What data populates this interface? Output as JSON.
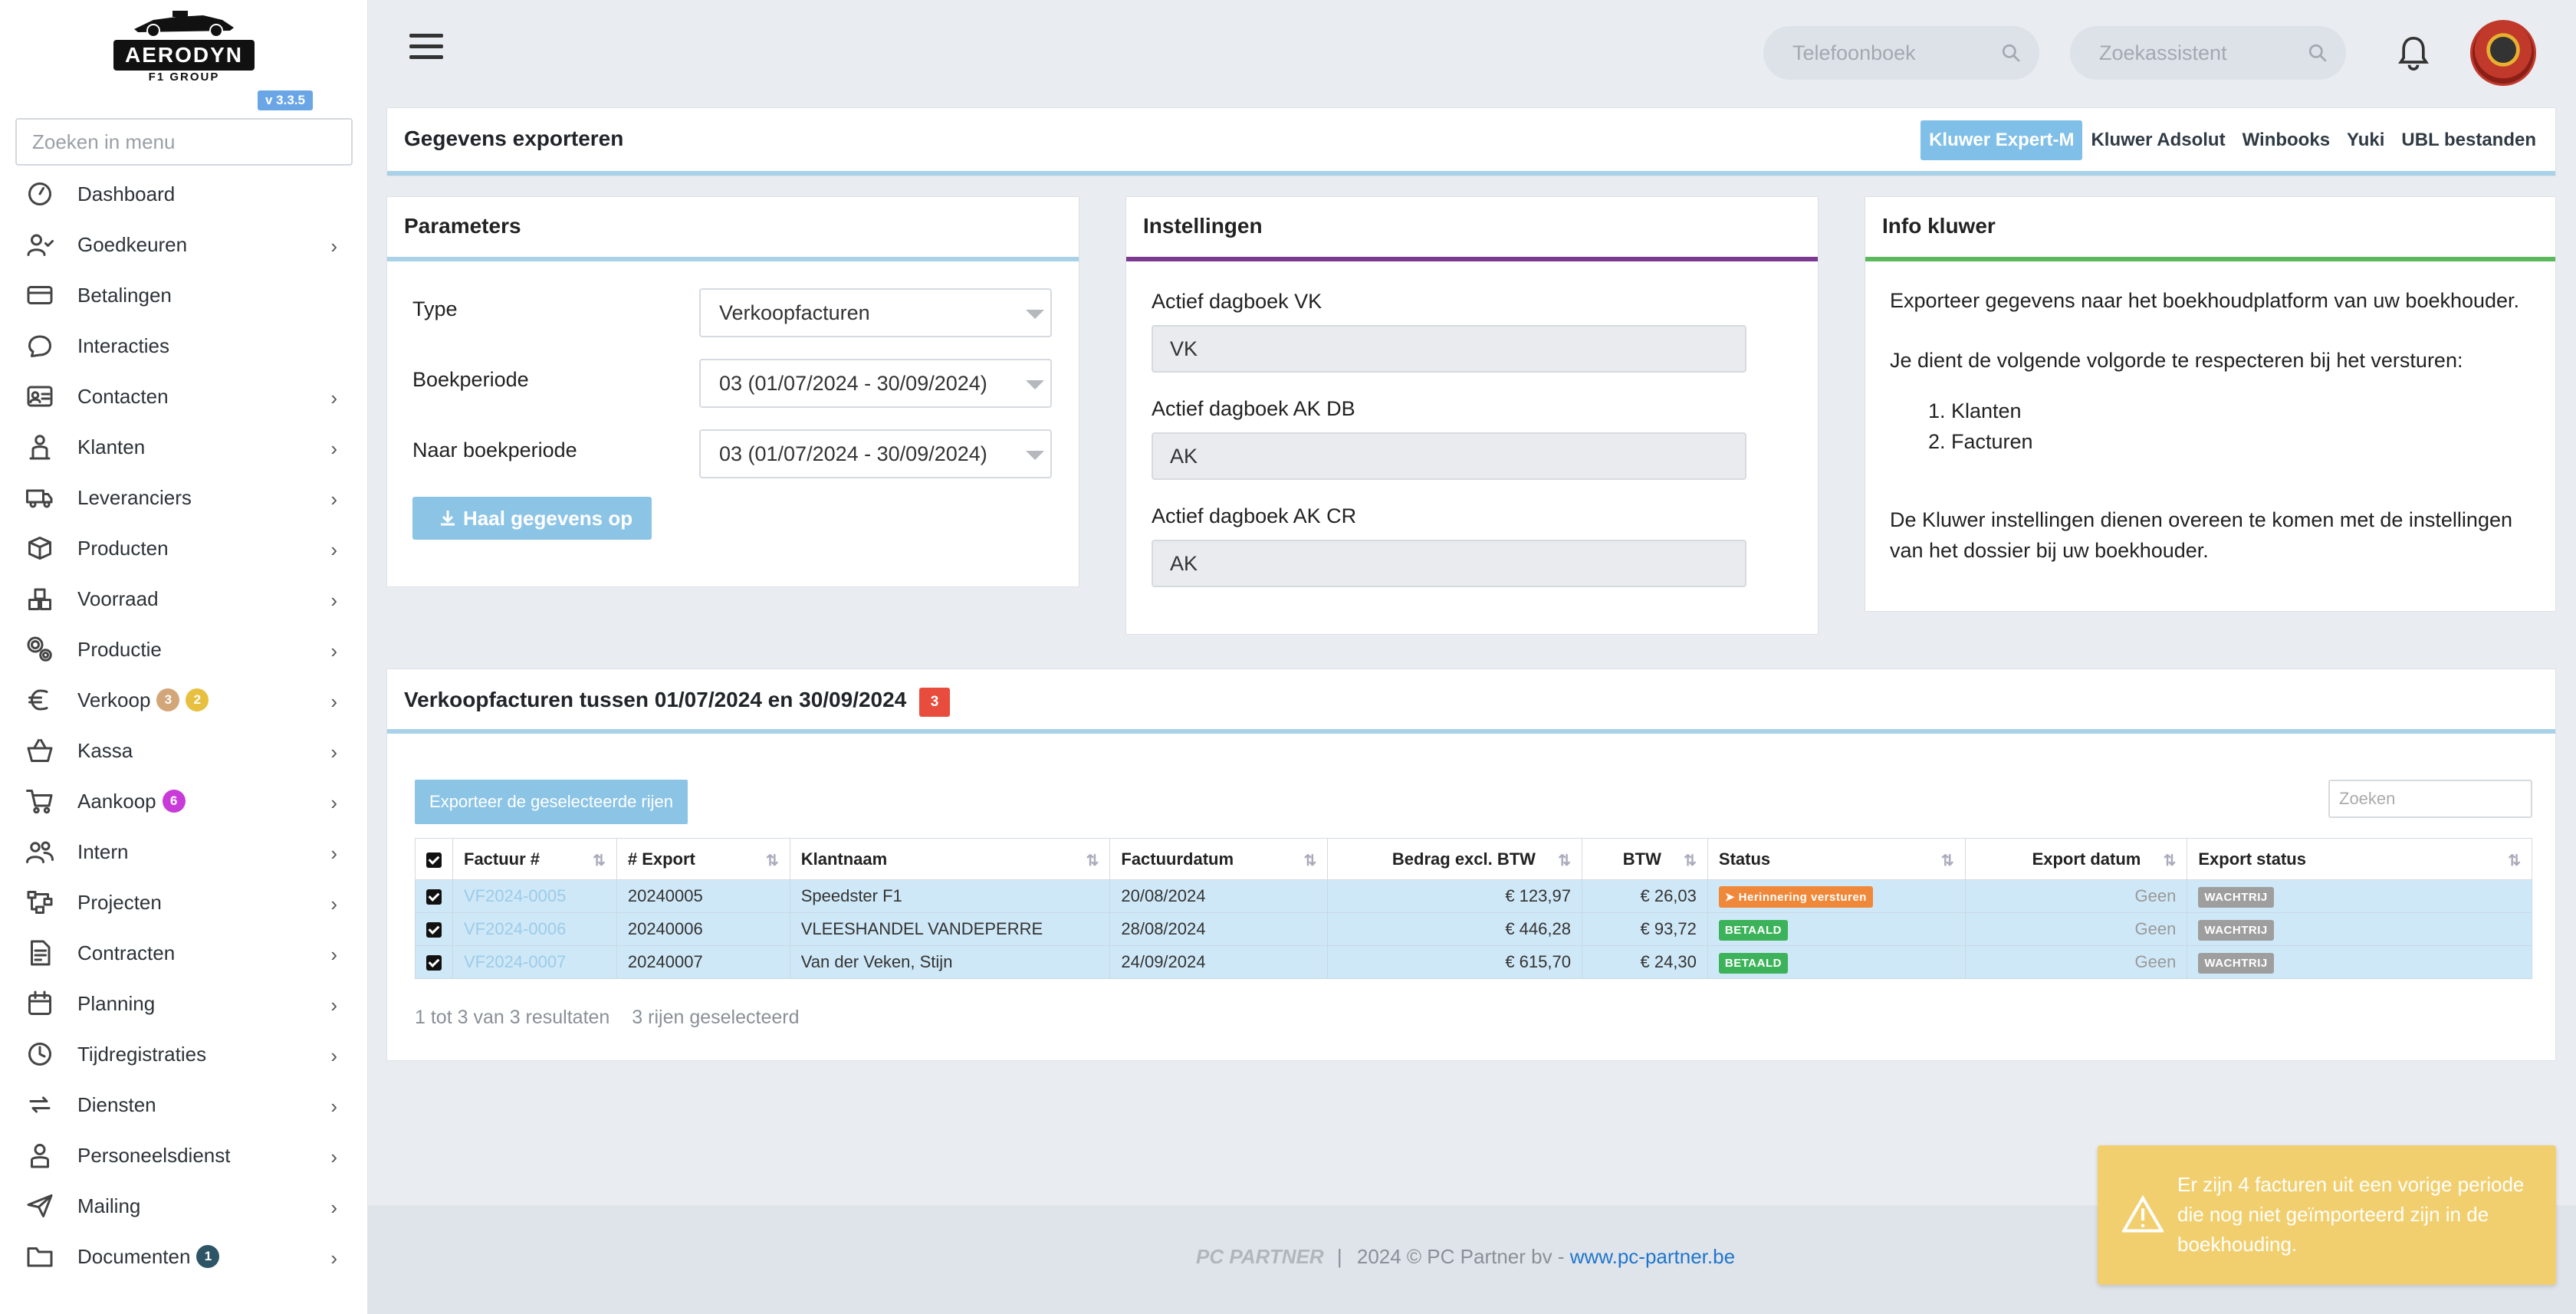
{
  "app": {
    "logo_text": "AERODYN",
    "logo_sub": "F1 GROUP",
    "version": "v 3.3.5"
  },
  "sidebar": {
    "search_placeholder": "Zoeken in menu",
    "items": [
      {
        "label": "Dashboard",
        "icon": "dashboard-icon",
        "chevron": false
      },
      {
        "label": "Goedkeuren",
        "icon": "user-check-icon",
        "chevron": true
      },
      {
        "label": "Betalingen",
        "icon": "credit-card-icon",
        "chevron": false
      },
      {
        "label": "Interacties",
        "icon": "chat-icon",
        "chevron": false
      },
      {
        "label": "Contacten",
        "icon": "contact-card-icon",
        "chevron": true
      },
      {
        "label": "Klanten",
        "icon": "customer-icon",
        "chevron": true
      },
      {
        "label": "Leveranciers",
        "icon": "truck-icon",
        "chevron": true
      },
      {
        "label": "Producten",
        "icon": "box-icon",
        "chevron": true
      },
      {
        "label": "Voorraad",
        "icon": "boxes-icon",
        "chevron": true
      },
      {
        "label": "Productie",
        "icon": "gears-icon",
        "chevron": true
      },
      {
        "label": "Verkoop",
        "icon": "euro-icon",
        "chevron": true,
        "badges": [
          {
            "value": "3",
            "color": "#d2a679"
          },
          {
            "value": "2",
            "color": "#e8c040"
          }
        ]
      },
      {
        "label": "Kassa",
        "icon": "basket-icon",
        "chevron": true
      },
      {
        "label": "Aankoop",
        "icon": "cart-icon",
        "chevron": true,
        "badges": [
          {
            "value": "6",
            "color": "#c93bd8"
          }
        ]
      },
      {
        "label": "Intern",
        "icon": "users-icon",
        "chevron": true
      },
      {
        "label": "Projecten",
        "icon": "project-icon",
        "chevron": true
      },
      {
        "label": "Contracten",
        "icon": "contract-icon",
        "chevron": true
      },
      {
        "label": "Planning",
        "icon": "calendar-icon",
        "chevron": true
      },
      {
        "label": "Tijdregistraties",
        "icon": "clock-icon",
        "chevron": true
      },
      {
        "label": "Diensten",
        "icon": "repeat-icon",
        "chevron": true
      },
      {
        "label": "Personeelsdienst",
        "icon": "person-icon",
        "chevron": true
      },
      {
        "label": "Mailing",
        "icon": "send-icon",
        "chevron": true
      },
      {
        "label": "Documenten",
        "icon": "folder-icon",
        "chevron": true,
        "badges": [
          {
            "value": "1",
            "color": "#2d5566"
          }
        ]
      }
    ]
  },
  "topbar": {
    "phonebook_placeholder": "Telefoonboek",
    "assistant_placeholder": "Zoekassistent"
  },
  "export_header": {
    "title": "Gegevens exporteren",
    "tabs": [
      "Kluwer Expert-M",
      "Kluwer Adsolut",
      "Winbooks",
      "Yuki",
      "UBL bestanden"
    ],
    "active_tab": "Kluwer Expert-M"
  },
  "parameters": {
    "title": "Parameters",
    "type_label": "Type",
    "type_value": "Verkoopfacturen",
    "period_label": "Boekperiode",
    "period_value": "03 (01/07/2024 - 30/09/2024)",
    "to_period_label": "Naar boekperiode",
    "to_period_value": "03 (01/07/2024 - 30/09/2024)",
    "fetch_button": "Haal gegevens op"
  },
  "settings": {
    "title": "Instellingen",
    "vk_label": "Actief dagboek VK",
    "vk_value": "VK",
    "akdb_label": "Actief dagboek AK DB",
    "akdb_value": "AK",
    "akcr_label": "Actief dagboek AK CR",
    "akcr_value": "AK"
  },
  "info": {
    "title": "Info kluwer",
    "p1": "Exporteer gegevens naar het boekhoudplatform van uw boekhouder.",
    "p2": "Je dient de volgende volgorde te respecteren bij het versturen:",
    "list": [
      "Klanten",
      "Facturen"
    ],
    "p3": "De Kluwer instellingen dienen overeen te komen met de instellingen van het dossier bij uw boekhouder."
  },
  "invoices": {
    "title": "Verkoopfacturen tussen 01/07/2024 en 30/09/2024",
    "count": "3",
    "export_button": "Exporteer de geselecteerde rijen",
    "search_placeholder": "Zoeken",
    "columns": [
      "Factuur #",
      "# Export",
      "Klantnaam",
      "Factuurdatum",
      "Bedrag excl. BTW",
      "BTW",
      "Status",
      "Export datum",
      "Export status"
    ],
    "rows": [
      {
        "factuur": "VF2024-0005",
        "export": "20240005",
        "klant": "Speedster F1",
        "datum": "20/08/2024",
        "bedrag": "€ 123,97",
        "btw": "€ 26,03",
        "status": "Herinnering versturen",
        "status_type": "orange",
        "export_datum": "Geen",
        "export_status": "WACHTRIJ"
      },
      {
        "factuur": "VF2024-0006",
        "export": "20240006",
        "klant": "VLEESHANDEL VANDEPERRE",
        "datum": "28/08/2024",
        "bedrag": "€ 446,28",
        "btw": "€ 93,72",
        "status": "BETAALD",
        "status_type": "green",
        "export_datum": "Geen",
        "export_status": "WACHTRIJ"
      },
      {
        "factuur": "VF2024-0007",
        "export": "20240007",
        "klant": "Van der Veken, Stijn",
        "datum": "24/09/2024",
        "bedrag": "€ 615,70",
        "btw": "€ 24,30",
        "status": "BETAALD",
        "status_type": "green",
        "export_datum": "Geen",
        "export_status": "WACHTRIJ"
      }
    ],
    "footer_results": "1 tot 3 van 3 resultaten",
    "footer_selected": "3 rijen geselecteerd"
  },
  "footer": {
    "brand": "PC PARTNER",
    "separator": "|",
    "copyright": "2024 © PC Partner bv - ",
    "link": "www.pc-partner.be"
  },
  "toast": {
    "message": "Er zijn 4 facturen uit een vorige periode die nog niet geïmporteerd zijn in de boekhouding."
  },
  "colors": {
    "accent_blue": "#8cc4e6",
    "settings_line": "#7b3a8f",
    "info_line": "#5cb85c",
    "toast_bg": "#f2cf6e"
  }
}
